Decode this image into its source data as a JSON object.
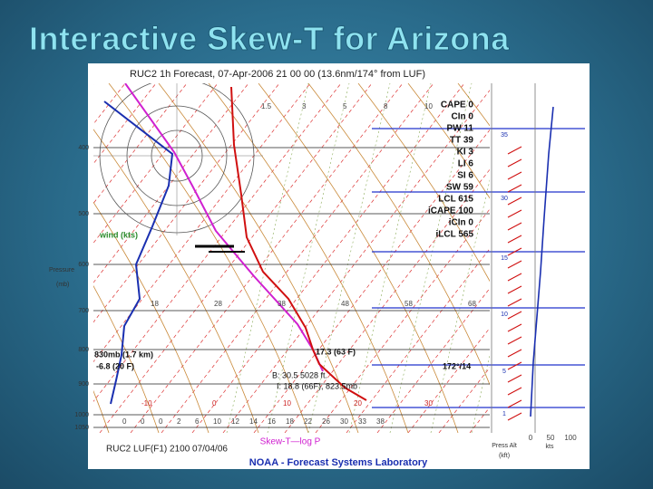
{
  "title": "Interactive Skew-T for Arizona",
  "plot": {
    "header": "RUC2 1h Forecast, 07-Apr-2006 21 00 00 (13.6nm/174° from LUF)",
    "indices": [
      "CAPE 0",
      "CIn 0",
      "PW 11",
      "TT 39",
      "KI 3",
      "LI 6",
      "SI 6",
      "SW 59",
      "LCL 615",
      "iCAPE 100",
      "iCIn 0",
      "iLCL 565"
    ],
    "pressure_labels": [
      "400",
      "500",
      "600",
      "700",
      "800",
      "900",
      "1000",
      "1050"
    ],
    "pressure_title": "Pressure",
    "pressure_unit": "(mb)",
    "wind_label": "wind (kts)",
    "mixing_ratio_labels": [
      "1.5",
      "3",
      "5",
      "8",
      "10"
    ],
    "theta_labels": [
      "18",
      "28",
      "38",
      "48",
      "58",
      "68"
    ],
    "temp_labels": [
      "-10",
      "0",
      "10",
      "20",
      "30"
    ],
    "bottom_scale": [
      "0",
      "0",
      "0",
      "2",
      "6",
      "10",
      "12",
      "14",
      "16",
      "18",
      "22",
      "26",
      "30",
      "33",
      "38"
    ],
    "annotations": {
      "lcl_left": "830mb (1.7 km)",
      "lcl_temp": "-6.8 (20 F)",
      "surface": "17.3 (63 F)",
      "b_line": "B: 30.5      5028 ft.",
      "i_line": "I: 18.8 (66F), 823.5mb",
      "wind_sfc": "172°/14"
    },
    "footer_left": "RUC2 LUF(F1) 2100 07/04/06",
    "footer_center": "Skew-T—log P",
    "footer_lab": "NOAA - Forecast Systems Laboratory",
    "alt_labels": [
      "35",
      "30",
      "15",
      "10",
      "5",
      "1"
    ],
    "speed_labels": [
      "0",
      "50",
      "100"
    ],
    "alt_title": "Press Alt",
    "alt_unit": "(kft)",
    "speed_unit": "kts"
  }
}
